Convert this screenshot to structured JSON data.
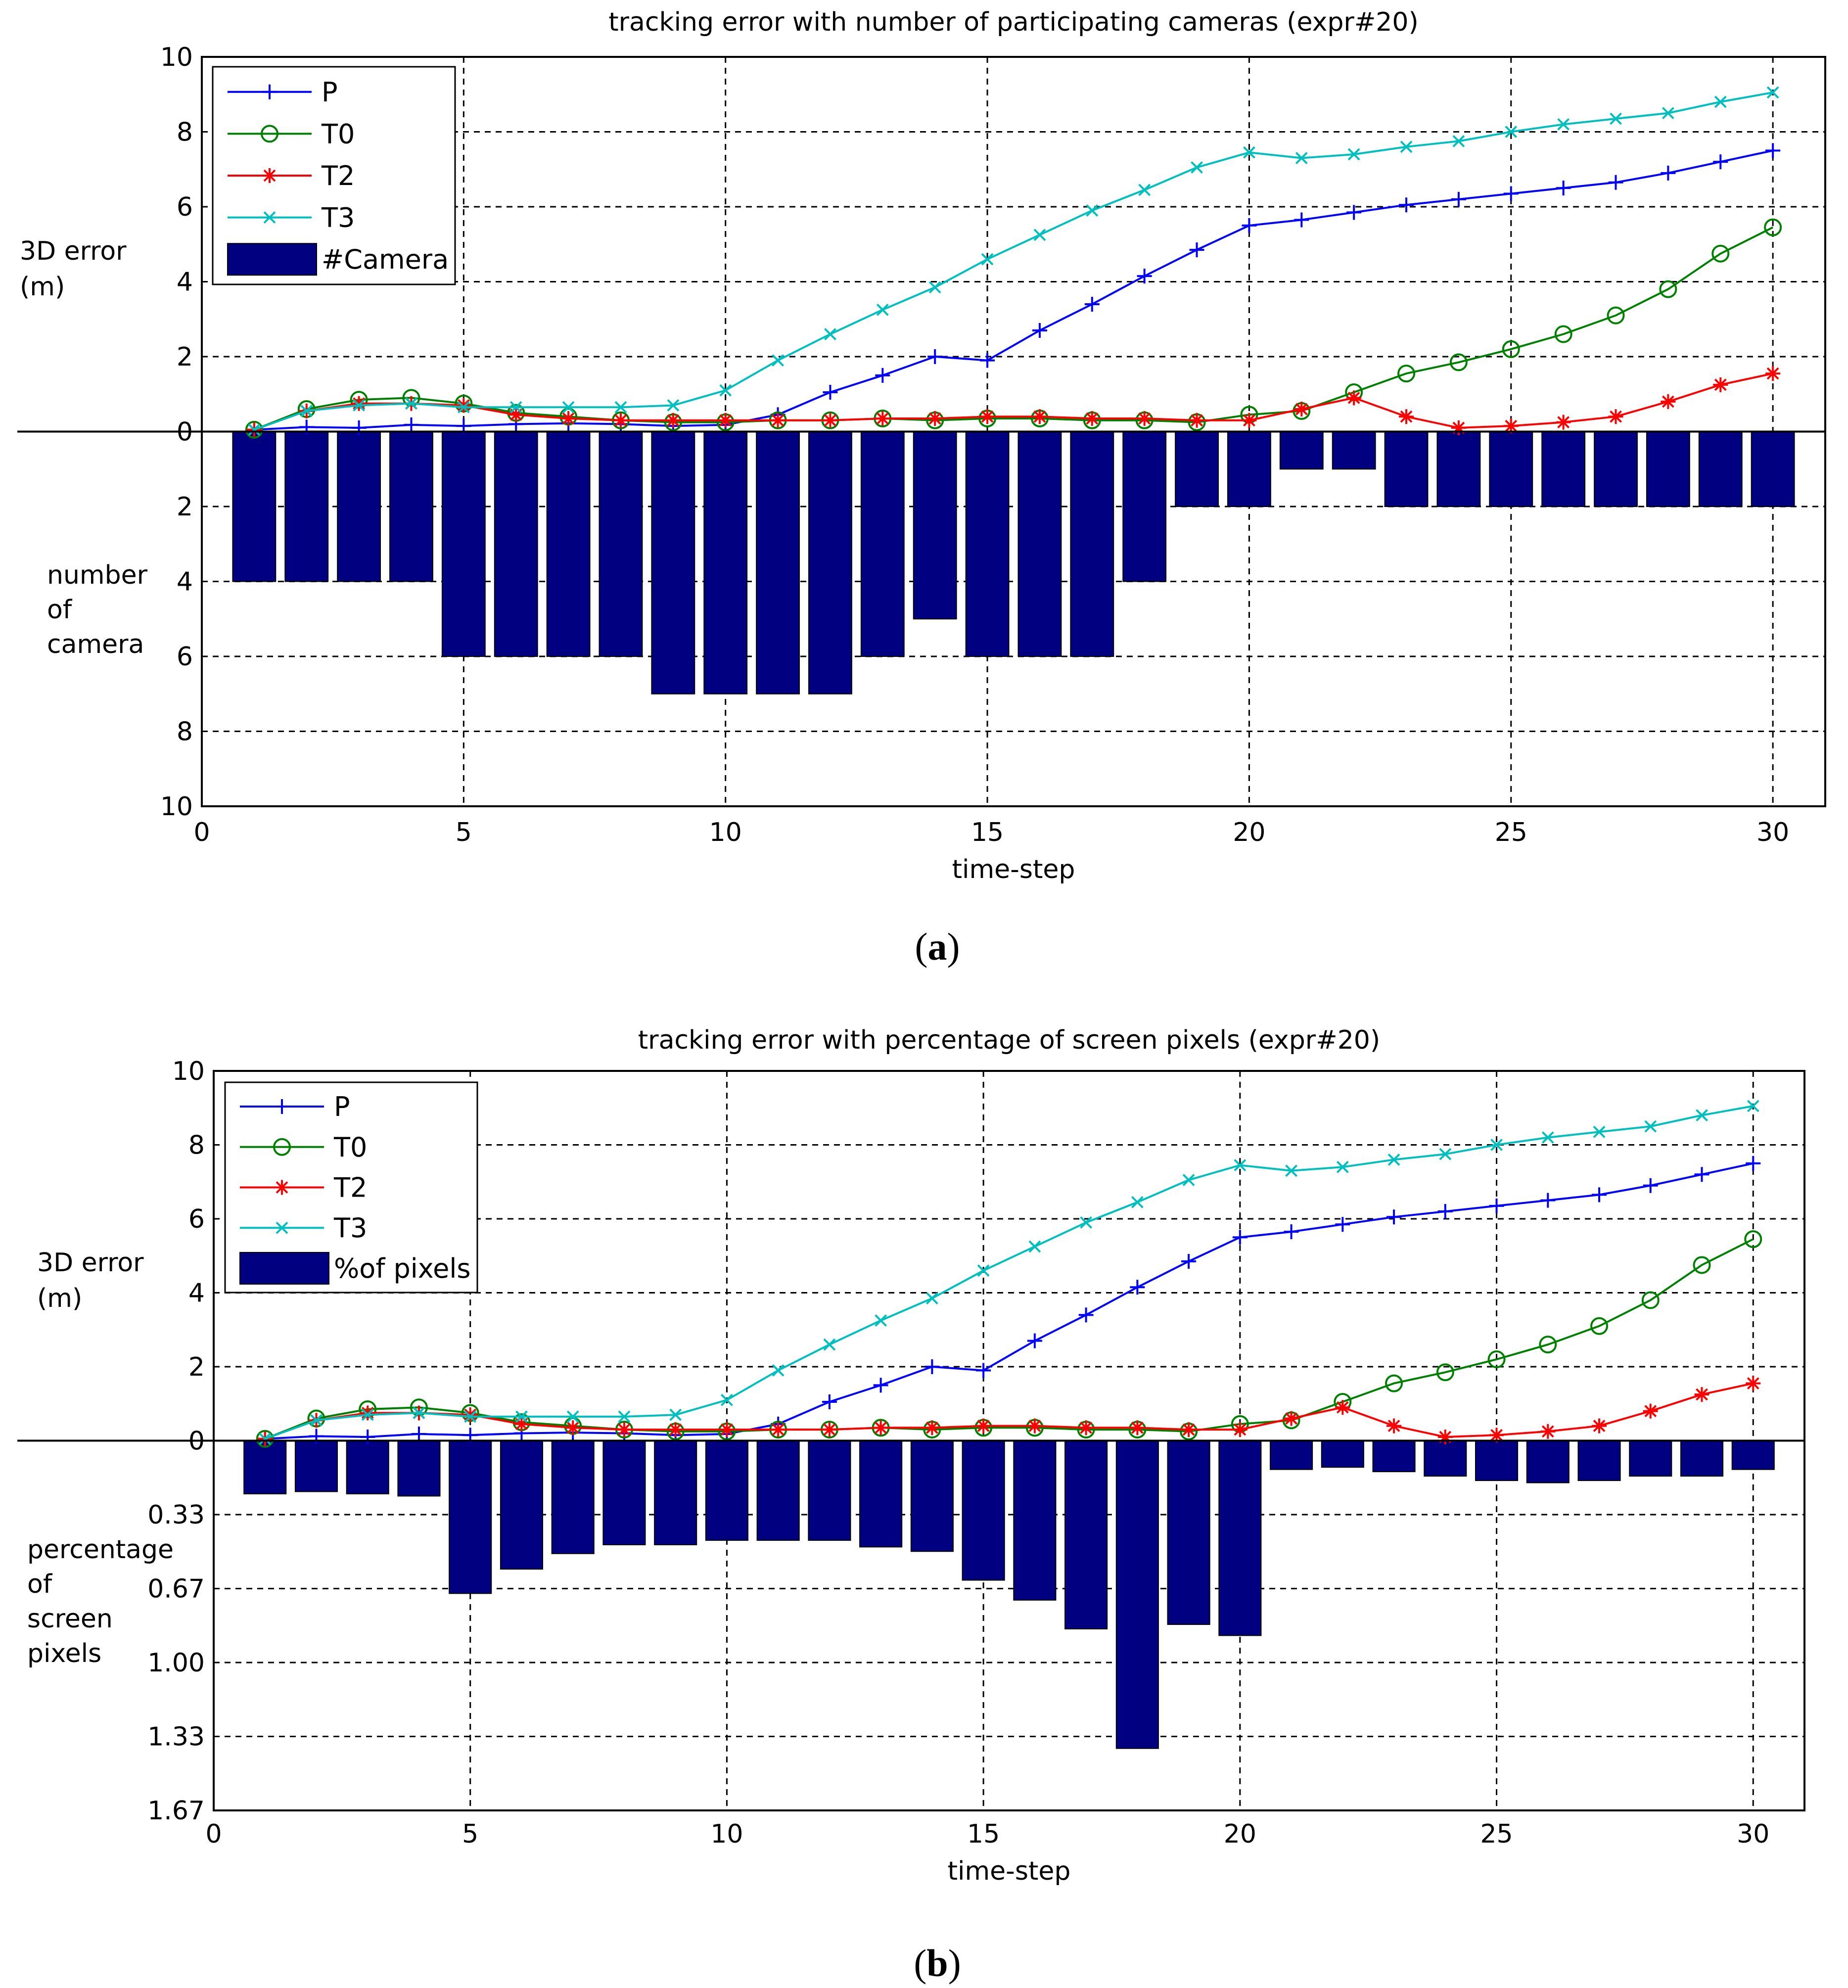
{
  "chart_data": [
    {
      "type": "bar",
      "title": "tracking error with number of participating cameras (expr#20)",
      "xlabel": "time-step",
      "ylabel_top": [
        "3D error",
        "(m)"
      ],
      "ylabel_bottom": [
        "number",
        "of",
        "camera"
      ],
      "xlim": [
        0,
        31
      ],
      "xticks": [
        0,
        5,
        10,
        15,
        20,
        25,
        30
      ],
      "ylim_top": [
        0,
        10
      ],
      "yticks_top": [
        "0",
        "2",
        "4",
        "6",
        "8",
        "10"
      ],
      "yticks_bottom": [
        "2",
        "4",
        "6",
        "8",
        "10"
      ],
      "bottom_max": 10,
      "x": [
        1,
        2,
        3,
        4,
        5,
        6,
        7,
        8,
        9,
        10,
        11,
        12,
        13,
        14,
        15,
        16,
        17,
        18,
        19,
        20,
        21,
        22,
        23,
        24,
        25,
        26,
        27,
        28,
        29,
        30
      ],
      "series": [
        {
          "name": "P",
          "color": "#0000ff",
          "marker": "plus",
          "values": [
            0.05,
            0.12,
            0.1,
            0.18,
            0.15,
            0.2,
            0.22,
            0.2,
            0.15,
            0.18,
            0.45,
            1.05,
            1.5,
            2.0,
            1.9,
            2.7,
            3.4,
            4.15,
            4.85,
            5.5,
            5.65,
            5.85,
            6.05,
            6.2,
            6.35,
            6.5,
            6.65,
            6.9,
            7.2,
            7.5
          ]
        },
        {
          "name": "T0",
          "color": "#008000",
          "marker": "circle",
          "values": [
            0.05,
            0.6,
            0.85,
            0.9,
            0.75,
            0.5,
            0.4,
            0.3,
            0.25,
            0.25,
            0.3,
            0.3,
            0.35,
            0.3,
            0.35,
            0.35,
            0.3,
            0.3,
            0.25,
            0.45,
            0.55,
            1.05,
            1.55,
            1.85,
            2.2,
            2.6,
            3.1,
            3.8,
            4.75,
            5.45
          ]
        },
        {
          "name": "T2",
          "color": "#ff0000",
          "marker": "star",
          "values": [
            0.05,
            0.55,
            0.75,
            0.75,
            0.7,
            0.45,
            0.35,
            0.3,
            0.3,
            0.3,
            0.3,
            0.3,
            0.35,
            0.35,
            0.4,
            0.4,
            0.35,
            0.35,
            0.3,
            0.3,
            0.6,
            0.9,
            0.4,
            0.1,
            0.15,
            0.25,
            0.4,
            0.8,
            1.25,
            1.55
          ]
        },
        {
          "name": "T3",
          "color": "#00bfbf",
          "marker": "x",
          "values": [
            0.05,
            0.55,
            0.7,
            0.75,
            0.65,
            0.65,
            0.65,
            0.65,
            0.7,
            1.1,
            1.9,
            2.6,
            3.25,
            3.85,
            4.6,
            5.25,
            5.9,
            6.45,
            7.05,
            7.45,
            7.3,
            7.4,
            7.6,
            7.75,
            8.0,
            8.2,
            8.35,
            8.5,
            8.8,
            9.05
          ]
        }
      ],
      "bars": {
        "name": "#Camera",
        "color": "#000080",
        "values": [
          4,
          4,
          4,
          4,
          6,
          6,
          6,
          6,
          7,
          7,
          7,
          7,
          6,
          5,
          6,
          6,
          6,
          4,
          2,
          2,
          1,
          1,
          2,
          2,
          2,
          2,
          2,
          2,
          2,
          2
        ]
      },
      "legend": "top-left",
      "grid": true
    },
    {
      "type": "bar",
      "title": "tracking error with percentage of screen pixels (expr#20)",
      "xlabel": "time-step",
      "ylabel_top": [
        "3D error",
        "(m)"
      ],
      "ylabel_bottom": [
        "percentage",
        "of",
        "screen",
        "pixels"
      ],
      "xlim": [
        0,
        31
      ],
      "xticks": [
        0,
        5,
        10,
        15,
        20,
        25,
        30
      ],
      "ylim_top": [
        0,
        10
      ],
      "yticks_top": [
        "0",
        "2",
        "4",
        "6",
        "8",
        "10"
      ],
      "yticks_bottom": [
        "0.33",
        "0.67",
        "1.00",
        "1.33",
        "1.67"
      ],
      "bottom_max": 1.67,
      "x": [
        1,
        2,
        3,
        4,
        5,
        6,
        7,
        8,
        9,
        10,
        11,
        12,
        13,
        14,
        15,
        16,
        17,
        18,
        19,
        20,
        21,
        22,
        23,
        24,
        25,
        26,
        27,
        28,
        29,
        30
      ],
      "series": [
        {
          "name": "P",
          "color": "#0000ff",
          "marker": "plus",
          "values": [
            0.05,
            0.12,
            0.1,
            0.18,
            0.15,
            0.2,
            0.22,
            0.2,
            0.15,
            0.18,
            0.45,
            1.05,
            1.5,
            2.0,
            1.9,
            2.7,
            3.4,
            4.15,
            4.85,
            5.5,
            5.65,
            5.85,
            6.05,
            6.2,
            6.35,
            6.5,
            6.65,
            6.9,
            7.2,
            7.5
          ]
        },
        {
          "name": "T0",
          "color": "#008000",
          "marker": "circle",
          "values": [
            0.05,
            0.6,
            0.85,
            0.9,
            0.75,
            0.5,
            0.4,
            0.3,
            0.25,
            0.25,
            0.3,
            0.3,
            0.35,
            0.3,
            0.35,
            0.35,
            0.3,
            0.3,
            0.25,
            0.45,
            0.55,
            1.05,
            1.55,
            1.85,
            2.2,
            2.6,
            3.1,
            3.8,
            4.75,
            5.45
          ]
        },
        {
          "name": "T2",
          "color": "#ff0000",
          "marker": "star",
          "values": [
            0.05,
            0.55,
            0.75,
            0.75,
            0.7,
            0.45,
            0.35,
            0.3,
            0.3,
            0.3,
            0.3,
            0.3,
            0.35,
            0.35,
            0.4,
            0.4,
            0.35,
            0.35,
            0.3,
            0.3,
            0.6,
            0.9,
            0.4,
            0.1,
            0.15,
            0.25,
            0.4,
            0.8,
            1.25,
            1.55
          ]
        },
        {
          "name": "T3",
          "color": "#00bfbf",
          "marker": "x",
          "values": [
            0.05,
            0.55,
            0.7,
            0.75,
            0.65,
            0.65,
            0.65,
            0.65,
            0.7,
            1.1,
            1.9,
            2.6,
            3.25,
            3.85,
            4.6,
            5.25,
            5.9,
            6.45,
            7.05,
            7.45,
            7.3,
            7.4,
            7.6,
            7.75,
            8.0,
            8.2,
            8.35,
            8.5,
            8.8,
            9.05
          ]
        }
      ],
      "bars": {
        "name": "%of pixels",
        "color": "#000080",
        "values": [
          0.24,
          0.23,
          0.24,
          0.25,
          0.69,
          0.58,
          0.51,
          0.47,
          0.47,
          0.45,
          0.45,
          0.45,
          0.48,
          0.5,
          0.63,
          0.72,
          0.85,
          1.39,
          0.83,
          0.88,
          0.13,
          0.12,
          0.14,
          0.16,
          0.18,
          0.19,
          0.18,
          0.16,
          0.16,
          0.13
        ]
      },
      "legend": "top-left",
      "grid": true
    }
  ],
  "captions": [
    "a",
    "b"
  ]
}
